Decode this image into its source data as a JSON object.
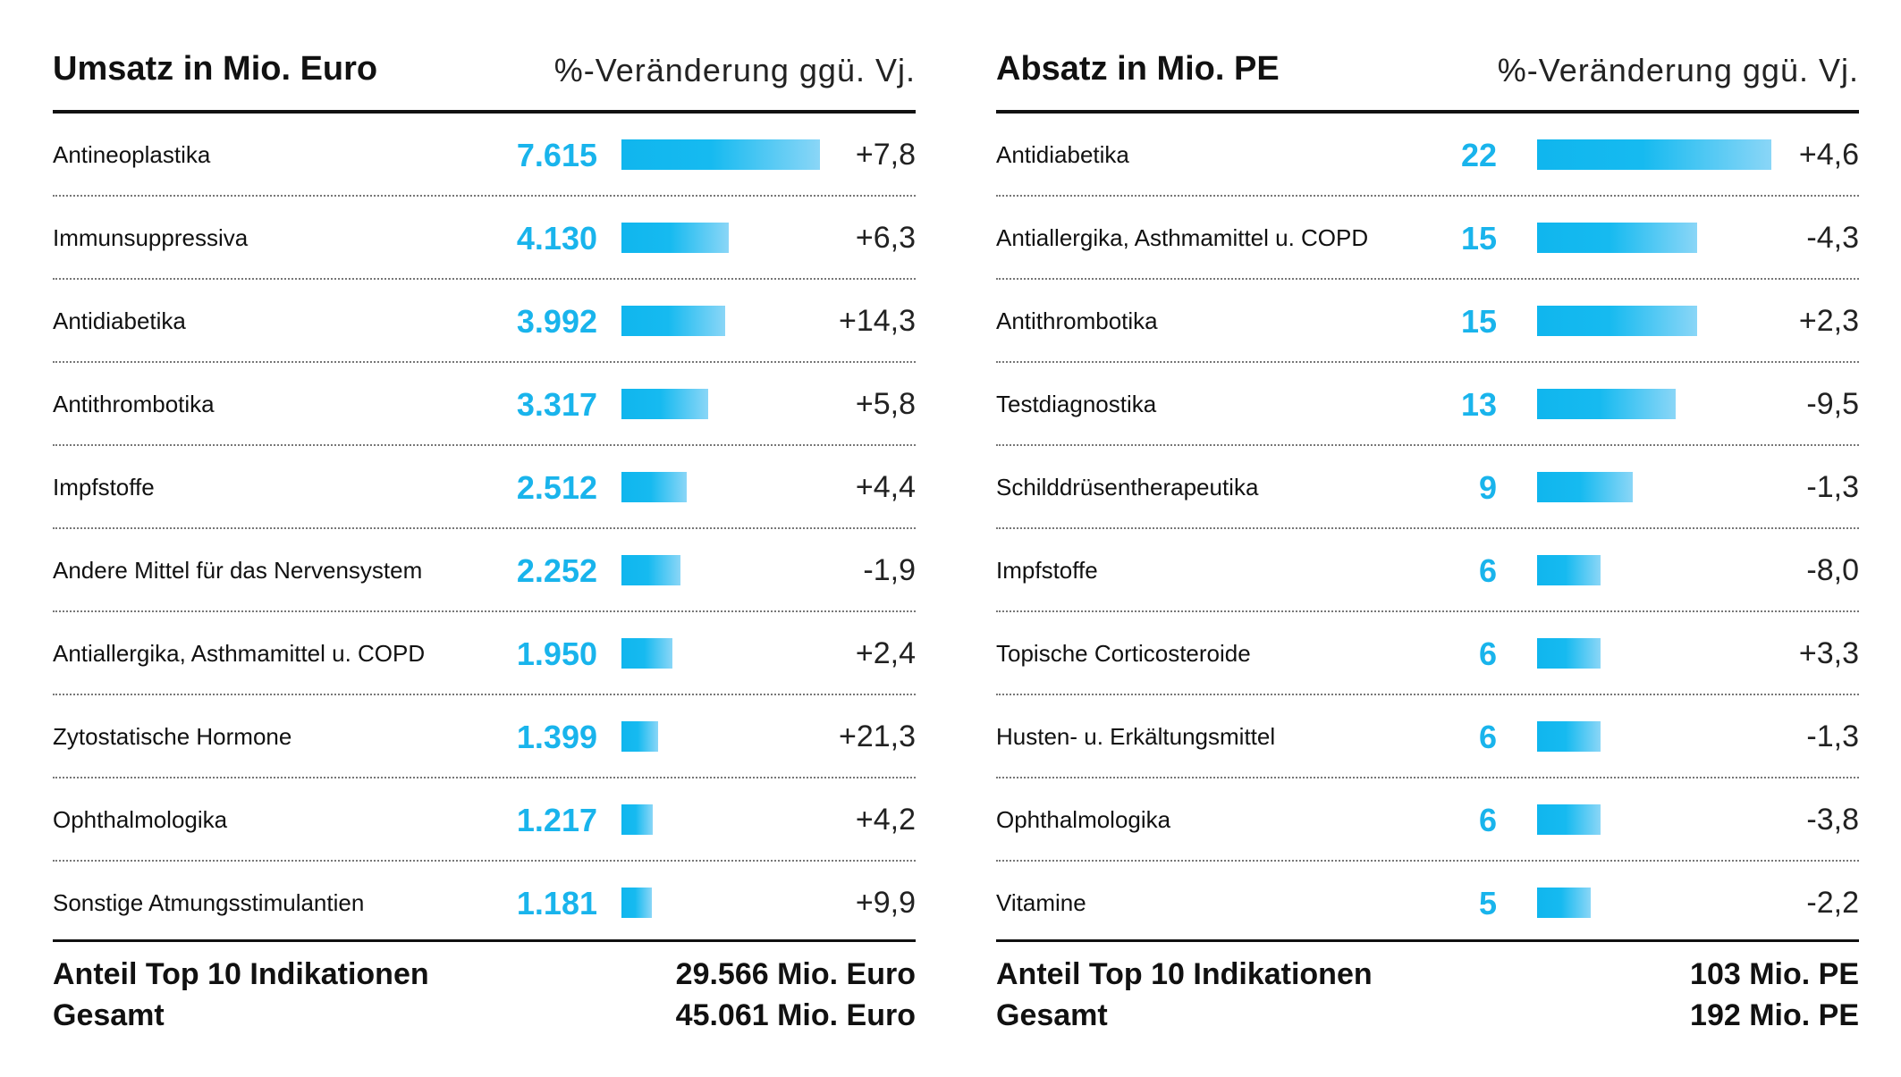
{
  "chart_data": [
    {
      "type": "bar",
      "title": "Umsatz in Mio. Euro",
      "subtitle": "%-Veränderung ggü. Vj.",
      "categories": [
        "Antineoplastika",
        "Immunsuppressiva",
        "Antidiabetika",
        "Antithrombotika",
        "Impfstoffe",
        "Andere Mittel für das Nervensystem",
        "Antiallergika, Asthmamittel u. COPD",
        "Zytostatische Hormone",
        "Ophthalmologika",
        "Sonstige Atmungsstimulantien"
      ],
      "values": [
        7615,
        4130,
        3992,
        3317,
        2512,
        2252,
        1950,
        1399,
        1217,
        1181
      ],
      "value_labels": [
        "7.615",
        "4.130",
        "3.992",
        "3.317",
        "2.512",
        "2.252",
        "1.950",
        "1.399",
        "1.217",
        "1.181"
      ],
      "changes": [
        "+7,8",
        "+6,3",
        "+14,3",
        "+5,8",
        "+4,4",
        "-1,9",
        "+2,4",
        "+21,3",
        "+4,2",
        "+9,9"
      ],
      "footer": [
        {
          "label": "Anteil Top 10 Indikationen",
          "value": "29.566 Mio. Euro"
        },
        {
          "label": "Gesamt",
          "value": "45.061 Mio. Euro"
        }
      ],
      "bar_color": "#19b4ec"
    },
    {
      "type": "bar",
      "title": "Absatz in Mio. PE",
      "subtitle": "%-Veränderung ggü. Vj.",
      "categories": [
        "Antidiabetika",
        "Antiallergika, Asthmamittel u. COPD",
        "Antithrombotika",
        "Testdiagnostika",
        "Schilddrüsentherapeutika",
        "Impfstoffe",
        "Topische Corticosteroide",
        "Husten- u. Erkältungsmittel",
        "Ophthalmologika",
        "Vitamine"
      ],
      "values": [
        22,
        15,
        15,
        13,
        9,
        6,
        6,
        6,
        6,
        5
      ],
      "value_labels": [
        "22",
        "15",
        "15",
        "13",
        "9",
        "6",
        "6",
        "6",
        "6",
        "5"
      ],
      "changes": [
        "+4,6",
        "-4,3",
        "+2,3",
        "-9,5",
        "-1,3",
        "-8,0",
        "+3,3",
        "-1,3",
        "-3,8",
        "-2,2"
      ],
      "footer": [
        {
          "label": "Anteil Top 10 Indikationen",
          "value": "103 Mio. PE"
        },
        {
          "label": "Gesamt",
          "value": "192 Mio. PE"
        }
      ],
      "bar_color": "#19b4ec"
    }
  ]
}
